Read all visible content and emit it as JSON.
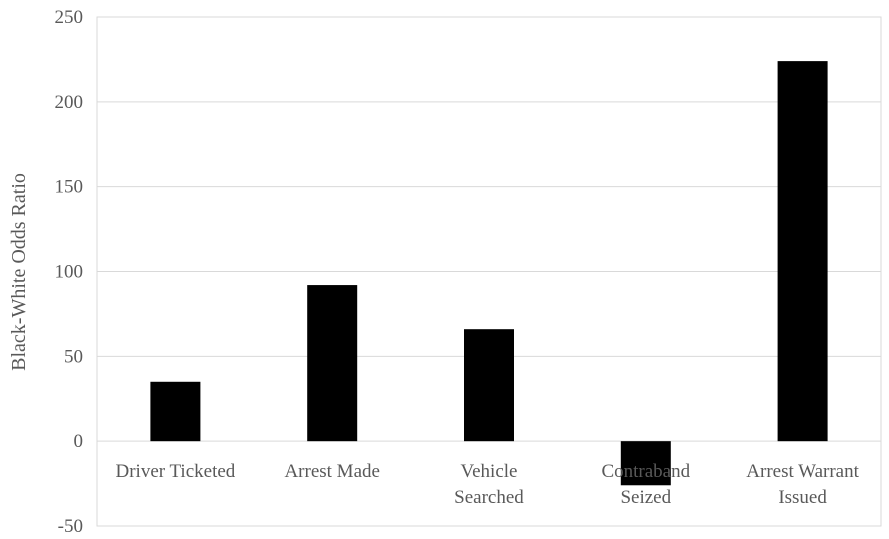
{
  "chart_data": {
    "type": "bar",
    "categories": [
      [
        "Driver Ticketed"
      ],
      [
        "Arrest Made"
      ],
      [
        "Vehicle",
        "Searched"
      ],
      [
        "Contraband",
        "Seized"
      ],
      [
        "Arrest Warrant",
        "Issued"
      ]
    ],
    "values": [
      35,
      92,
      66,
      -26,
      224
    ],
    "title": "",
    "xlabel": "",
    "ylabel": "Black-White Odds Ratio",
    "ylim": [
      -50,
      250
    ],
    "yticks": [
      -50,
      0,
      50,
      100,
      150,
      200,
      250
    ],
    "grid": true,
    "bar_color": "#000000",
    "grid_color": "#d9d9d9",
    "text_color": "#595959"
  }
}
